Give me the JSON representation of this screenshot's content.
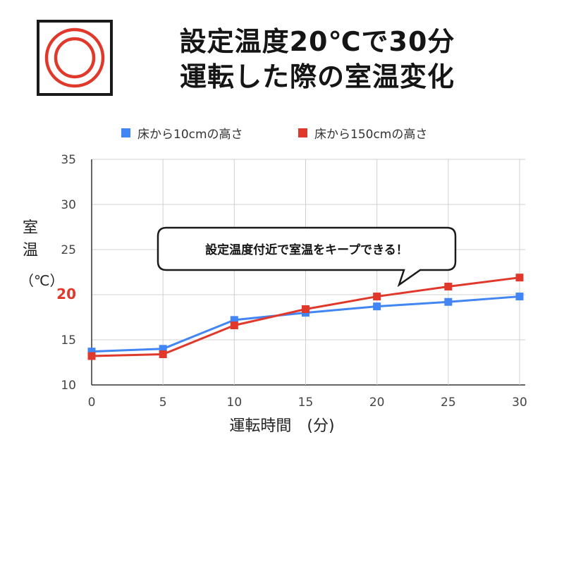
{
  "title": {
    "line1": "設定温度20℃で30分",
    "line2": "運転した際の室温変化"
  },
  "logo": {
    "icon": "double-ring-icon",
    "border_color": "#1a1a1a",
    "ring_color": "#e0392c"
  },
  "y_axis_label": {
    "chars": [
      "室",
      "温"
    ],
    "unit": "（℃）"
  },
  "x_axis_label": "運転時間　(分)",
  "callout": "設定温度付近で室温をキープできる！",
  "chart_data": {
    "type": "line",
    "x": [
      0,
      5,
      10,
      15,
      20,
      25,
      30
    ],
    "xticks": [
      "0",
      "5",
      "10",
      "15",
      "20",
      "25",
      "30"
    ],
    "yticks": [
      "10",
      "15",
      "20",
      "25",
      "30",
      "35"
    ],
    "highlight_ytick": "20",
    "highlight_color": "#e0392c",
    "xlim": [
      0,
      30
    ],
    "ylim": [
      10,
      35
    ],
    "grid": true,
    "legend_position": "top-center",
    "series": [
      {
        "name": "床から10cmの高さ",
        "color": "#4285f4",
        "values": [
          13.7,
          14.0,
          17.2,
          18.0,
          18.7,
          19.2,
          19.8
        ]
      },
      {
        "name": "床から150cmの高さ",
        "color": "#e0392c",
        "values": [
          13.2,
          13.4,
          16.6,
          18.4,
          19.8,
          20.9,
          21.9
        ]
      }
    ]
  }
}
